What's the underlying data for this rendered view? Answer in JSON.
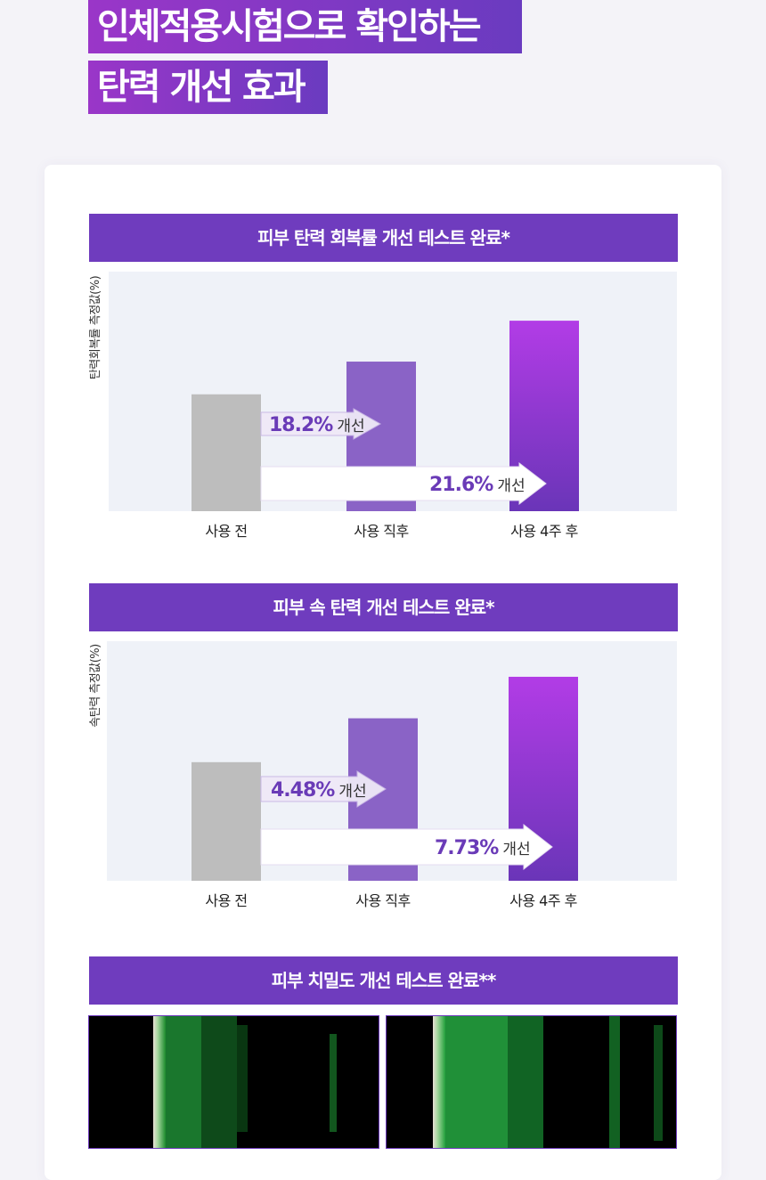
{
  "headline": {
    "line1": "인체적용시험으로 확인하는",
    "line2": "탄력 개선 효과"
  },
  "colors": {
    "accent": "#6f3cbe",
    "bar_before": "#bdbdbd",
    "bar_after_immediately": "#8a63c6",
    "bar_after_4weeks_top": "#b23ce6",
    "bar_after_4weeks_bottom": "#6a35b8",
    "plot_bg": "#eff2f8",
    "pct_text": "#6a3bb7"
  },
  "chart_data": [
    {
      "type": "bar",
      "title": "피부 탄력 회복률 개선 테스트 완료*",
      "ylabel": "탄력회복률 측정값(%)",
      "categories": [
        "사용 전",
        "사용 직후",
        "사용 4주 후"
      ],
      "values": [
        100,
        128,
        163
      ],
      "ylim": [
        0,
        205
      ],
      "annotations": [
        {
          "from": 0,
          "to": 1,
          "value": "18.2%",
          "text": "개선"
        },
        {
          "from": 0,
          "to": 2,
          "value": "21.6%",
          "text": "개선"
        }
      ]
    },
    {
      "type": "bar",
      "title": "피부 속 탄력 개선 테스트 완료*",
      "ylabel": "속탄력 측정값(%)",
      "categories": [
        "사용 전",
        "사용 직후",
        "사용 4주 후"
      ],
      "values": [
        100,
        137,
        172
      ],
      "ylim": [
        0,
        202
      ],
      "annotations": [
        {
          "from": 0,
          "to": 1,
          "value": "4.48%",
          "text": "개선"
        },
        {
          "from": 0,
          "to": 2,
          "value": "7.73%",
          "text": "개선"
        }
      ]
    }
  ],
  "section3": {
    "title": "피부 치밀도 개선 테스트 완료**"
  }
}
